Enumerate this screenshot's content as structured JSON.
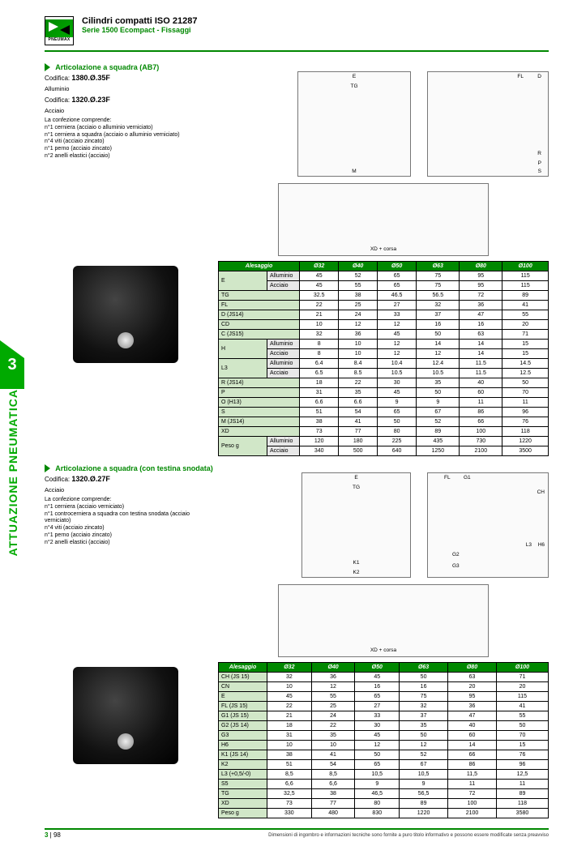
{
  "header": {
    "logo_text": "PNEUMAX",
    "title": "Cilindri compatti ISO 21287",
    "subtitle": "Serie 1500 Ecompact - Fissaggi"
  },
  "side": {
    "chapter": "3",
    "label": "ATTUAZIONE PNEUMATICA"
  },
  "section1": {
    "title": "Articolazione a squadra (AB7)",
    "cod_label_a": "Codifica:",
    "cod_value_a": "1380.Ø.35F",
    "mat_a": "Alluminio",
    "cod_label_b": "Codifica:",
    "cod_value_b": "1320.Ø.23F",
    "mat_b": "Acciaio",
    "desc": "La confezione comprende:\nn°1 cerniera (acciaio o alluminio verniciato)\nn°1 cerniera a squadra (acciaio o alluminio verniciato)\nn°4 viti (acciaio zincato)\nn°1 perno (acciaio zincato)\nn°2 anelli elastici (acciaio)",
    "xd_label": "XD + corsa",
    "table": {
      "header": [
        "Alesaggio",
        "Ø32",
        "Ø40",
        "Ø50",
        "Ø63",
        "Ø80",
        "Ø100"
      ],
      "rows": [
        {
          "l": "E",
          "s": "Alluminio",
          "v": [
            "45",
            "52",
            "65",
            "75",
            "95",
            "115"
          ]
        },
        {
          "l": "",
          "s": "Acciaio",
          "v": [
            "45",
            "55",
            "65",
            "75",
            "95",
            "115"
          ]
        },
        {
          "l": "TG",
          "s": "",
          "v": [
            "32.5",
            "38",
            "46.5",
            "56.5",
            "72",
            "89"
          ]
        },
        {
          "l": "FL",
          "s": "",
          "v": [
            "22",
            "25",
            "27",
            "32",
            "36",
            "41"
          ]
        },
        {
          "l": "D (JS14)",
          "s": "",
          "v": [
            "21",
            "24",
            "33",
            "37",
            "47",
            "55"
          ]
        },
        {
          "l": "CD",
          "s": "",
          "v": [
            "10",
            "12",
            "12",
            "16",
            "16",
            "20"
          ]
        },
        {
          "l": "C (JS15)",
          "s": "",
          "v": [
            "32",
            "36",
            "45",
            "50",
            "63",
            "71"
          ]
        },
        {
          "l": "H",
          "s": "Alluminio",
          "v": [
            "8",
            "10",
            "12",
            "14",
            "14",
            "15"
          ]
        },
        {
          "l": "",
          "s": "Acciaio",
          "v": [
            "8",
            "10",
            "12",
            "12",
            "14",
            "15"
          ]
        },
        {
          "l": "L3",
          "s": "Alluminio",
          "v": [
            "6.4",
            "8.4",
            "10.4",
            "12.4",
            "11.5",
            "14.5"
          ]
        },
        {
          "l": "",
          "s": "Acciaio",
          "v": [
            "6.5",
            "8.5",
            "10.5",
            "10.5",
            "11.5",
            "12.5"
          ]
        },
        {
          "l": "R (JS14)",
          "s": "",
          "v": [
            "18",
            "22",
            "30",
            "35",
            "40",
            "50"
          ]
        },
        {
          "l": "P",
          "s": "",
          "v": [
            "31",
            "35",
            "45",
            "50",
            "60",
            "70"
          ]
        },
        {
          "l": "O (H13)",
          "s": "",
          "v": [
            "6.6",
            "6.6",
            "9",
            "9",
            "11",
            "11"
          ]
        },
        {
          "l": "S",
          "s": "",
          "v": [
            "51",
            "54",
            "65",
            "67",
            "86",
            "96"
          ]
        },
        {
          "l": "M (JS14)",
          "s": "",
          "v": [
            "38",
            "41",
            "50",
            "52",
            "66",
            "76"
          ]
        },
        {
          "l": "XD",
          "s": "",
          "v": [
            "73",
            "77",
            "80",
            "89",
            "100",
            "118"
          ]
        },
        {
          "l": "Peso g",
          "s": "Alluminio",
          "v": [
            "120",
            "180",
            "225",
            "435",
            "730",
            "1220"
          ]
        },
        {
          "l": "",
          "s": "Acciaio",
          "v": [
            "340",
            "500",
            "640",
            "1250",
            "2100",
            "3500"
          ]
        }
      ]
    }
  },
  "section2": {
    "title": "Articolazione a squadra (con testina snodata)",
    "cod_label": "Codifica:",
    "cod_value": "1320.Ø.27F",
    "mat": "Acciaio",
    "desc": "La confezione comprende:\nn°1 cerniera (acciaio verniciato)\nn°1 controcerniera a squadra con testina snodata (acciaio verniciato)\nn°4 viti (acciaio zincato)\nn°1 perno (acciaio zincato)\nn°2 anelli elastici (acciaio)",
    "xd_label": "XD + corsa",
    "table": {
      "header": [
        "Alesaggio",
        "Ø32",
        "Ø40",
        "Ø50",
        "Ø63",
        "Ø80",
        "Ø100"
      ],
      "rows": [
        {
          "l": "CH (JS 15)",
          "v": [
            "32",
            "36",
            "45",
            "50",
            "63",
            "71"
          ]
        },
        {
          "l": "CN",
          "v": [
            "10",
            "12",
            "16",
            "16",
            "20",
            "20"
          ]
        },
        {
          "l": "E",
          "v": [
            "45",
            "55",
            "65",
            "75",
            "95",
            "115"
          ]
        },
        {
          "l": "FL (JS 15)",
          "v": [
            "22",
            "25",
            "27",
            "32",
            "36",
            "41"
          ]
        },
        {
          "l": "G1 (JS 15)",
          "v": [
            "21",
            "24",
            "33",
            "37",
            "47",
            "55"
          ]
        },
        {
          "l": "G2 (JS 14)",
          "v": [
            "18",
            "22",
            "30",
            "35",
            "40",
            "50"
          ]
        },
        {
          "l": "G3",
          "v": [
            "31",
            "35",
            "45",
            "50",
            "60",
            "70"
          ]
        },
        {
          "l": "H6",
          "v": [
            "10",
            "10",
            "12",
            "12",
            "14",
            "15"
          ]
        },
        {
          "l": "K1 (JS 14)",
          "v": [
            "38",
            "41",
            "50",
            "52",
            "66",
            "76"
          ]
        },
        {
          "l": "K2",
          "v": [
            "51",
            "54",
            "65",
            "67",
            "86",
            "96"
          ]
        },
        {
          "l": "L3 (+0,5/-0)",
          "v": [
            "8,5",
            "8,5",
            "10,5",
            "10,5",
            "11,5",
            "12,5"
          ]
        },
        {
          "l": "S5",
          "v": [
            "6,6",
            "6,6",
            "9",
            "9",
            "11",
            "11"
          ]
        },
        {
          "l": "TG",
          "v": [
            "32,5",
            "38",
            "46,5",
            "56,5",
            "72",
            "89"
          ]
        },
        {
          "l": "XD",
          "v": [
            "73",
            "77",
            "80",
            "89",
            "100",
            "118"
          ]
        },
        {
          "l": "Peso g",
          "v": [
            "330",
            "480",
            "830",
            "1220",
            "2100",
            "3580"
          ]
        }
      ]
    }
  },
  "footer": {
    "chapter": "3",
    "page": "98",
    "disclaimer": "Dimensioni di ingombro e informazioni tecniche sono fornite a puro titolo informativo e possono essere modificate senza preavviso"
  }
}
